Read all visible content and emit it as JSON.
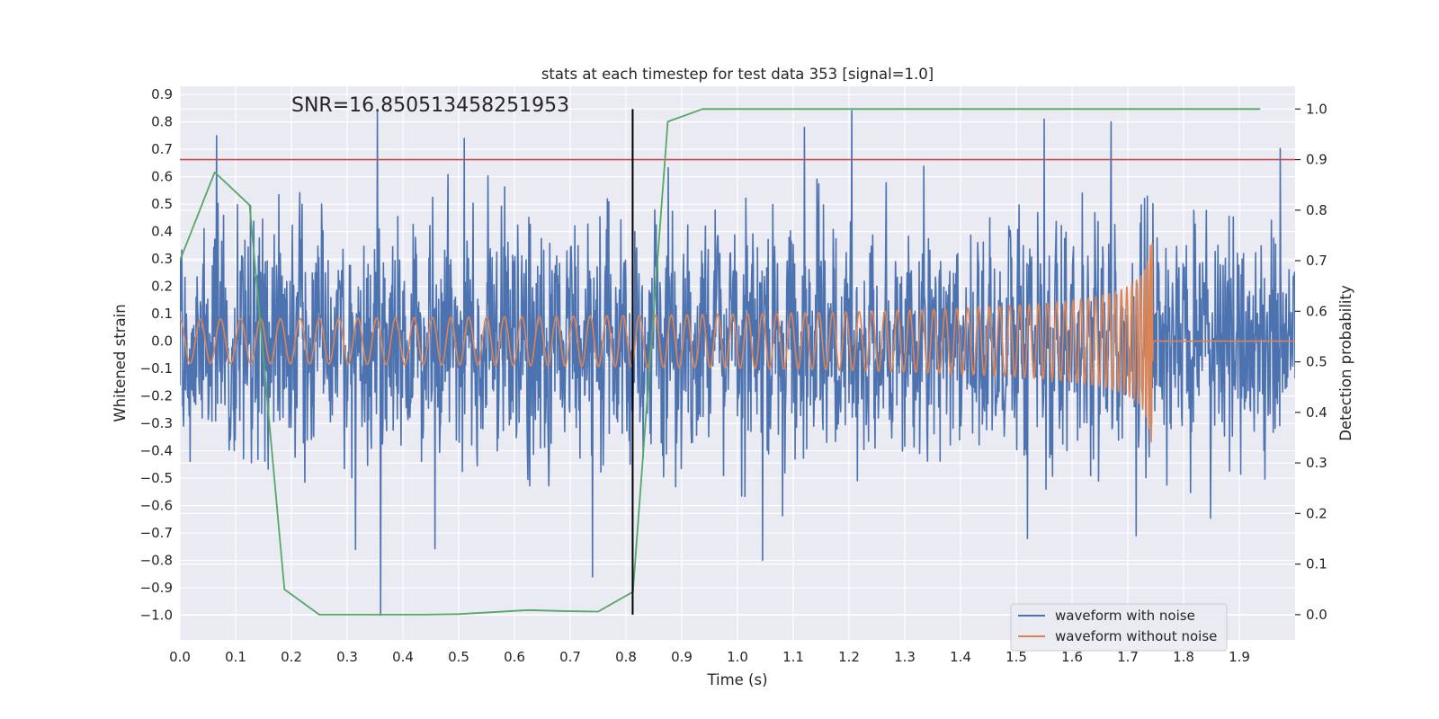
{
  "chart_data": {
    "type": "line",
    "title": "stats at each timestep for test data 353 [signal=1.0]",
    "xlabel": "Time (s)",
    "ylabel": "Whitened strain",
    "y2label": "Detection probability",
    "xlim": [
      0.0,
      2.0
    ],
    "ylim": [
      -1.09,
      0.93
    ],
    "y2lim": [
      -0.05,
      1.045
    ],
    "xticks": [
      "0.0",
      "0.1",
      "0.2",
      "0.3",
      "0.4",
      "0.5",
      "0.6",
      "0.7",
      "0.8",
      "0.9",
      "1.0",
      "1.1",
      "1.2",
      "1.3",
      "1.4",
      "1.5",
      "1.6",
      "1.7",
      "1.8",
      "1.9"
    ],
    "yticks": [
      "0.9",
      "0.8",
      "0.7",
      "0.6",
      "0.5",
      "0.4",
      "0.3",
      "0.2",
      "0.1",
      "0.0",
      "−0.1",
      "−0.2",
      "−0.3",
      "−0.4",
      "−0.5",
      "−0.6",
      "−0.7",
      "−0.8",
      "−0.9",
      "−1.0"
    ],
    "y2ticks": [
      "1.0",
      "0.9",
      "0.8",
      "0.7",
      "0.6",
      "0.5",
      "0.4",
      "0.3",
      "0.2",
      "0.1",
      "0.0"
    ],
    "annotation": "SNR=16.850513458251953",
    "threshold": 0.9,
    "vline_x": 0.812,
    "legend": {
      "position": "lower-right",
      "entries": [
        "waveform with noise",
        "waveform without noise"
      ]
    },
    "colors": {
      "noise": "#4c72b0",
      "clean": "#dd8452",
      "prob": "#55a868",
      "threshold": "#c44e52",
      "vline": "#000000",
      "background": "#eaeaf2",
      "grid": "#ffffff"
    },
    "series": [
      {
        "name": "waveform with noise",
        "axis": "left",
        "description": "whitened strain sampled at ~2 kHz, peaks: max 0.84 at 1.205 s, min -1.0 at 0.36 s",
        "noise_std": 0.25,
        "spikes": [
          [
            0.066,
            0.75
          ],
          [
            0.36,
            -1.0
          ],
          [
            0.51,
            0.74
          ],
          [
            0.74,
            -0.86
          ],
          [
            1.045,
            -0.8
          ],
          [
            1.12,
            0.78
          ],
          [
            1.205,
            0.84
          ],
          [
            1.55,
            0.81
          ],
          [
            1.67,
            0.8
          ],
          [
            1.715,
            -0.71
          ],
          [
            1.52,
            -0.72
          ],
          [
            0.315,
            -0.76
          ]
        ]
      },
      {
        "name": "waveform without noise",
        "axis": "left",
        "description": "chirp signal, amplitude ~0.08 rising to ~0.37, merger at 1.745 s, zero afterwards",
        "t_merger": 1.745,
        "amp_start": 0.08,
        "amp_end": 0.37
      },
      {
        "name": "detection probability",
        "axis": "right",
        "x": [
          0.0,
          0.0625,
          0.125,
          0.1875,
          0.25,
          0.3125,
          0.375,
          0.4375,
          0.5,
          0.5625,
          0.625,
          0.6875,
          0.75,
          0.8125,
          0.875,
          0.9375,
          1.0,
          1.0625,
          1.125,
          1.1875,
          1.25,
          1.3125,
          1.375,
          1.4375,
          1.5,
          1.5625,
          1.625,
          1.6875,
          1.75,
          1.8125,
          1.875,
          1.9375
        ],
        "values": [
          0.7,
          0.875,
          0.81,
          0.05,
          0.0,
          0.0,
          0.0,
          0.0,
          0.001,
          0.005,
          0.009,
          0.007,
          0.006,
          0.045,
          0.975,
          1.0,
          1.0,
          1.0,
          1.0,
          1.0,
          1.0,
          1.0,
          1.0,
          1.0,
          1.0,
          1.0,
          1.0,
          1.0,
          1.0,
          1.0,
          1.0,
          1.0
        ]
      }
    ]
  }
}
